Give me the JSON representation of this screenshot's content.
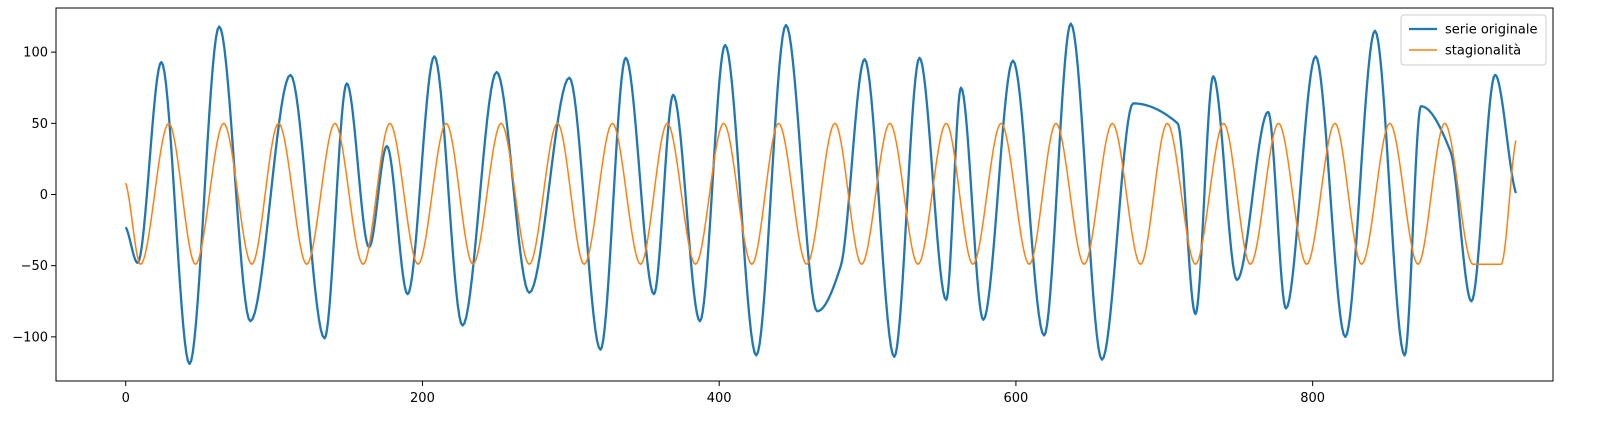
{
  "chart_data": {
    "type": "line",
    "title": "",
    "xlabel": "",
    "ylabel": "",
    "xlim": [
      -47,
      962
    ],
    "ylim": [
      -131,
      131
    ],
    "x_ticks": [
      0,
      200,
      400,
      600,
      800
    ],
    "y_ticks": [
      -100,
      -50,
      0,
      50,
      100
    ],
    "grid": false,
    "legend_position": "top-right",
    "series": [
      {
        "name": "serie originale",
        "color": "#1f77b4",
        "x": [
          0,
          8,
          24,
          43,
          63,
          84,
          111,
          134,
          149,
          164,
          176,
          190,
          208,
          227,
          250,
          272,
          299,
          320,
          337,
          356,
          369,
          387,
          404,
          425,
          445,
          466,
          482,
          498,
          518,
          535,
          553,
          563,
          578,
          598,
          619,
          637,
          658,
          679,
          709,
          721,
          733,
          749,
          770,
          782,
          802,
          822,
          842,
          862,
          873,
          893,
          907,
          923,
          937
        ],
        "values": [
          -23,
          -48,
          93,
          -119,
          118,
          -89,
          84,
          -101,
          78,
          -37,
          34,
          -70,
          97,
          -92,
          86,
          -69,
          82,
          -109,
          96,
          -70,
          70,
          -89,
          105,
          -113,
          119,
          -82,
          -50,
          95,
          -114,
          96,
          -74,
          75,
          -88,
          94,
          -99,
          120,
          -116,
          64,
          50,
          -84,
          83,
          -60,
          58,
          -80,
          97,
          -100,
          115,
          -113,
          62,
          30,
          -75,
          84,
          1
        ]
      },
      {
        "name": "stagionalità",
        "color": "#ff7f0e",
        "period": 37.4,
        "amplitude": 50,
        "x": [
          0,
          10,
          29,
          47,
          66,
          85,
          103,
          122,
          141,
          160,
          178,
          197,
          216,
          234,
          253,
          272,
          291,
          309,
          328,
          347,
          365,
          384,
          403,
          422,
          440,
          459,
          478,
          496,
          515,
          534,
          553,
          571,
          590,
          609,
          627,
          646,
          665,
          684,
          702,
          721,
          740,
          758,
          777,
          796,
          815,
          833,
          852,
          871,
          889,
          908,
          927,
          937
        ],
        "values": [
          8,
          -49,
          50,
          -49,
          50,
          -49,
          50,
          -49,
          50,
          -49,
          50,
          -49,
          50,
          -49,
          50,
          -49,
          50,
          -49,
          50,
          -49,
          50,
          -49,
          50,
          -49,
          50,
          -49,
          50,
          -49,
          50,
          -49,
          50,
          -49,
          50,
          -49,
          50,
          -49,
          50,
          -49,
          50,
          -49,
          50,
          -49,
          50,
          -49,
          50,
          -49,
          50,
          -49,
          50,
          -49,
          -49,
          38
        ]
      }
    ]
  }
}
